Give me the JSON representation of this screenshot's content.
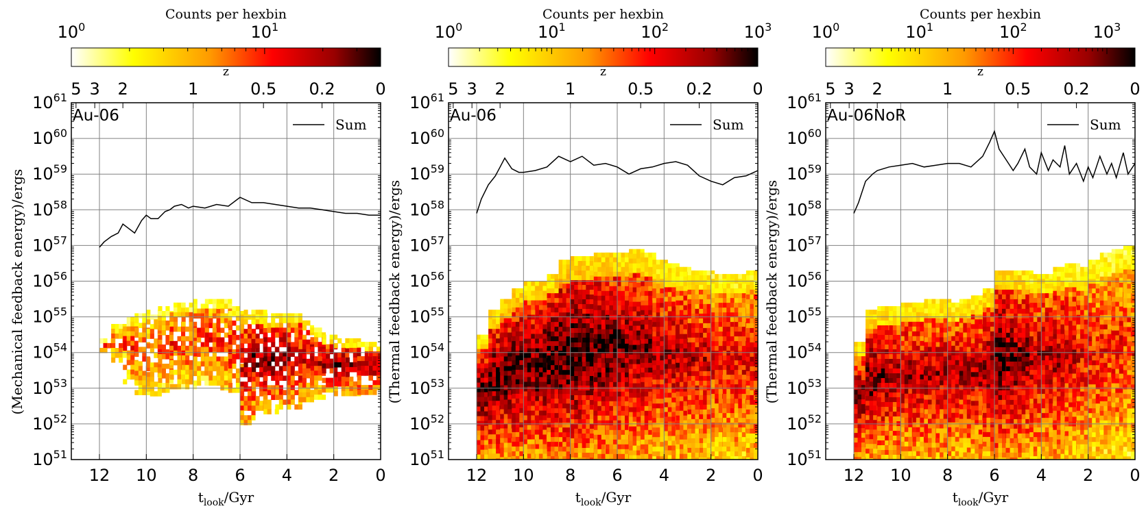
{
  "chart_data": [
    {
      "type": "heatmap",
      "panel_label": "Au-06",
      "legend": [
        "Sum"
      ],
      "ylabel_main": "(Mechanical feedback energy)/ergs",
      "xlabel_main": "t",
      "xlabel_sub": "look",
      "xlabel_unit": "/Gyr",
      "xlim": [
        13.2,
        0
      ],
      "xticks": [
        "12",
        "10",
        "8",
        "6",
        "4",
        "2",
        "0"
      ],
      "ylim_log10": [
        51,
        61
      ],
      "y_tick_base": "10",
      "y_tick_exps": [
        "51",
        "52",
        "53",
        "54",
        "55",
        "56",
        "57",
        "58",
        "59",
        "60",
        "61"
      ],
      "top_axis_label": "z",
      "top_ticks": [
        "5",
        "3",
        "2",
        "1",
        "0.5",
        "0.2",
        "0"
      ],
      "grid": true,
      "colorbar": {
        "label": "Counts per hexbin",
        "scale": "log",
        "tick_base": "10",
        "tick_exps": [
          "0",
          "1"
        ],
        "range_exp": [
          0,
          1.6
        ]
      },
      "sum_line": {
        "t": [
          12.0,
          11.8,
          11.5,
          11.2,
          11.0,
          10.8,
          10.5,
          10.2,
          10.0,
          9.8,
          9.5,
          9.2,
          9.0,
          8.8,
          8.5,
          8.2,
          8.0,
          7.5,
          7.0,
          6.5,
          6.0,
          5.5,
          5.0,
          4.5,
          4.0,
          3.5,
          3.0,
          2.5,
          2.0,
          1.5,
          1.0,
          0.5,
          0.0
        ],
        "log10E": [
          56.95,
          57.1,
          57.25,
          57.35,
          57.6,
          57.5,
          57.35,
          57.7,
          57.85,
          57.75,
          57.75,
          57.95,
          58.0,
          58.1,
          58.15,
          58.05,
          58.1,
          58.05,
          58.15,
          58.1,
          58.35,
          58.2,
          58.2,
          58.15,
          58.1,
          58.05,
          58.05,
          58.0,
          57.95,
          57.9,
          57.9,
          57.85,
          57.85
        ]
      },
      "density_bins_t": [
        12.0,
        11.5,
        11.0,
        10.5,
        10.0,
        9.5,
        9.0,
        8.5,
        8.0,
        7.5,
        7.0,
        6.5,
        6.0,
        5.5,
        5.0,
        4.5,
        4.0,
        3.5,
        3.0,
        2.5,
        2.0,
        1.5,
        1.0,
        0.5
      ],
      "density_lo": [
        54.1,
        53.8,
        53.2,
        52.9,
        52.9,
        53.0,
        53.1,
        53.1,
        53.2,
        53.1,
        53.0,
        52.9,
        52.0,
        52.4,
        52.4,
        52.5,
        52.5,
        52.7,
        52.8,
        52.9,
        52.9,
        52.9,
        52.9,
        52.9
      ],
      "density_hi": [
        54.4,
        54.8,
        55.0,
        55.1,
        55.2,
        55.3,
        55.4,
        55.4,
        55.5,
        55.5,
        55.5,
        55.3,
        55.2,
        55.2,
        55.1,
        55.1,
        55.1,
        54.9,
        54.7,
        54.5,
        54.4,
        54.4,
        54.3,
        54.3
      ],
      "density_peak": [
        0.6,
        0.5,
        0.6,
        0.5,
        0.5,
        0.55,
        0.6,
        0.6,
        0.6,
        0.6,
        0.6,
        0.65,
        0.8,
        0.85,
        0.85,
        0.85,
        0.8,
        0.75,
        0.75,
        0.8,
        0.85,
        0.85,
        0.8,
        0.8
      ]
    },
    {
      "type": "heatmap",
      "panel_label": "Au-06",
      "legend": [
        "Sum"
      ],
      "ylabel_main": "(Thermal feedback energy)/ergs",
      "xlabel_main": "t",
      "xlabel_sub": "look",
      "xlabel_unit": "/Gyr",
      "xlim": [
        13.2,
        0
      ],
      "xticks": [
        "12",
        "10",
        "8",
        "6",
        "4",
        "2",
        "0"
      ],
      "ylim_log10": [
        51,
        61
      ],
      "y_tick_base": "10",
      "y_tick_exps": [
        "51",
        "52",
        "53",
        "54",
        "55",
        "56",
        "57",
        "58",
        "59",
        "60",
        "61"
      ],
      "top_axis_label": "z",
      "top_ticks": [
        "5",
        "3",
        "2",
        "1",
        "0.5",
        "0.2",
        "0"
      ],
      "grid": true,
      "colorbar": {
        "label": "Counts per hexbin",
        "scale": "log",
        "tick_base": "10",
        "tick_exps": [
          "0",
          "1",
          "2",
          "3"
        ],
        "range_exp": [
          0,
          3
        ]
      },
      "sum_line": {
        "t": [
          12.0,
          11.8,
          11.5,
          11.2,
          11.0,
          10.8,
          10.5,
          10.2,
          10.0,
          9.5,
          9.0,
          8.5,
          8.0,
          7.5,
          7.0,
          6.5,
          6.0,
          5.5,
          5.0,
          4.5,
          4.0,
          3.5,
          3.0,
          2.5,
          2.0,
          1.5,
          1.0,
          0.5,
          0.0
        ],
        "log10E": [
          57.9,
          58.3,
          58.7,
          58.95,
          59.2,
          59.45,
          59.15,
          59.05,
          59.05,
          59.1,
          59.2,
          59.5,
          59.35,
          59.5,
          59.25,
          59.3,
          59.2,
          59.0,
          59.15,
          59.2,
          59.3,
          59.35,
          59.25,
          58.95,
          58.8,
          58.7,
          58.9,
          58.95,
          59.1
        ]
      },
      "density_bins_t": [
        12.0,
        11.5,
        11.0,
        10.5,
        10.0,
        9.5,
        9.0,
        8.5,
        8.0,
        7.5,
        7.0,
        6.5,
        6.0,
        5.5,
        5.0,
        4.5,
        4.0,
        3.5,
        3.0,
        2.5,
        2.0,
        1.5,
        1.0,
        0.5
      ],
      "density_lo": [
        51.0,
        51.0,
        51.0,
        51.0,
        51.0,
        51.0,
        51.0,
        51.0,
        51.0,
        51.0,
        51.0,
        51.0,
        51.0,
        51.0,
        51.0,
        51.0,
        51.0,
        51.0,
        51.0,
        51.0,
        51.0,
        51.0,
        51.0,
        51.0
      ],
      "density_hi": [
        54.5,
        55.2,
        55.5,
        55.8,
        56.0,
        56.0,
        56.2,
        56.6,
        56.7,
        56.7,
        56.8,
        56.8,
        56.8,
        56.9,
        56.8,
        56.6,
        56.5,
        56.4,
        56.3,
        56.3,
        56.2,
        56.2,
        56.2,
        56.3
      ],
      "density_peak": [
        0.9,
        0.95,
        0.95,
        0.95,
        0.9,
        0.95,
        0.95,
        1.0,
        1.0,
        0.95,
        0.95,
        0.95,
        0.9,
        0.85,
        0.85,
        0.8,
        0.8,
        0.8,
        0.75,
        0.75,
        0.7,
        0.7,
        0.7,
        0.7
      ]
    },
    {
      "type": "heatmap",
      "panel_label": "Au-06NoR",
      "legend": [
        "Sum"
      ],
      "ylabel_main": "(Thermal feedback energy)/ergs",
      "xlabel_main": "t",
      "xlabel_sub": "look",
      "xlabel_unit": "/Gyr",
      "xlim": [
        13.2,
        0
      ],
      "xticks": [
        "12",
        "10",
        "8",
        "6",
        "4",
        "2",
        "0"
      ],
      "ylim_log10": [
        51,
        61
      ],
      "y_tick_base": "10",
      "y_tick_exps": [
        "51",
        "52",
        "53",
        "54",
        "55",
        "56",
        "57",
        "58",
        "59",
        "60",
        "61"
      ],
      "top_axis_label": "z",
      "top_ticks": [
        "5",
        "3",
        "2",
        "1",
        "0.5",
        "0.2",
        "0"
      ],
      "grid": true,
      "colorbar": {
        "label": "Counts per hexbin",
        "scale": "log",
        "tick_base": "10",
        "tick_exps": [
          "0",
          "1",
          "2",
          "3"
        ],
        "range_exp": [
          0,
          3.3
        ]
      },
      "sum_line": {
        "t": [
          12.0,
          11.8,
          11.5,
          11.2,
          11.0,
          10.5,
          10.0,
          9.5,
          9.0,
          8.5,
          8.0,
          7.5,
          7.0,
          6.5,
          6.2,
          6.0,
          5.8,
          5.5,
          5.2,
          5.0,
          4.7,
          4.5,
          4.2,
          4.0,
          3.7,
          3.5,
          3.2,
          3.0,
          2.8,
          2.5,
          2.2,
          2.0,
          1.8,
          1.5,
          1.2,
          1.0,
          0.8,
          0.5,
          0.3,
          0.0
        ],
        "log10E": [
          57.9,
          58.2,
          58.8,
          59.0,
          59.1,
          59.2,
          59.25,
          59.3,
          59.2,
          59.25,
          59.3,
          59.3,
          59.2,
          59.5,
          59.9,
          60.2,
          59.7,
          59.4,
          59.1,
          59.3,
          59.7,
          59.2,
          59.0,
          59.6,
          59.1,
          59.4,
          59.2,
          59.8,
          59.0,
          59.3,
          58.8,
          59.2,
          58.9,
          59.5,
          59.0,
          59.3,
          58.9,
          59.6,
          59.0,
          59.3
        ]
      },
      "density_bins_t": [
        12.0,
        11.5,
        11.0,
        10.5,
        10.0,
        9.5,
        9.0,
        8.5,
        8.0,
        7.5,
        7.0,
        6.5,
        6.0,
        5.5,
        5.0,
        4.5,
        4.0,
        3.5,
        3.0,
        2.5,
        2.0,
        1.5,
        1.0,
        0.5
      ],
      "density_lo": [
        51.0,
        51.0,
        51.0,
        51.0,
        51.0,
        51.0,
        51.0,
        51.0,
        51.0,
        51.0,
        51.0,
        51.0,
        51.0,
        51.0,
        51.0,
        51.0,
        51.0,
        51.0,
        51.0,
        51.0,
        51.0,
        51.0,
        51.0,
        51.0
      ],
      "density_hi": [
        54.3,
        55.2,
        55.3,
        55.3,
        55.4,
        55.4,
        55.5,
        55.5,
        55.4,
        55.5,
        55.6,
        55.8,
        56.3,
        56.3,
        56.3,
        56.2,
        56.2,
        56.4,
        56.5,
        56.4,
        56.6,
        56.8,
        56.9,
        57.0
      ],
      "density_peak": [
        0.85,
        0.9,
        0.85,
        0.8,
        0.8,
        0.8,
        0.8,
        0.8,
        0.8,
        0.8,
        0.8,
        0.85,
        0.95,
        0.9,
        0.85,
        0.8,
        0.8,
        0.8,
        0.75,
        0.7,
        0.65,
        0.65,
        0.65,
        0.6
      ]
    }
  ]
}
